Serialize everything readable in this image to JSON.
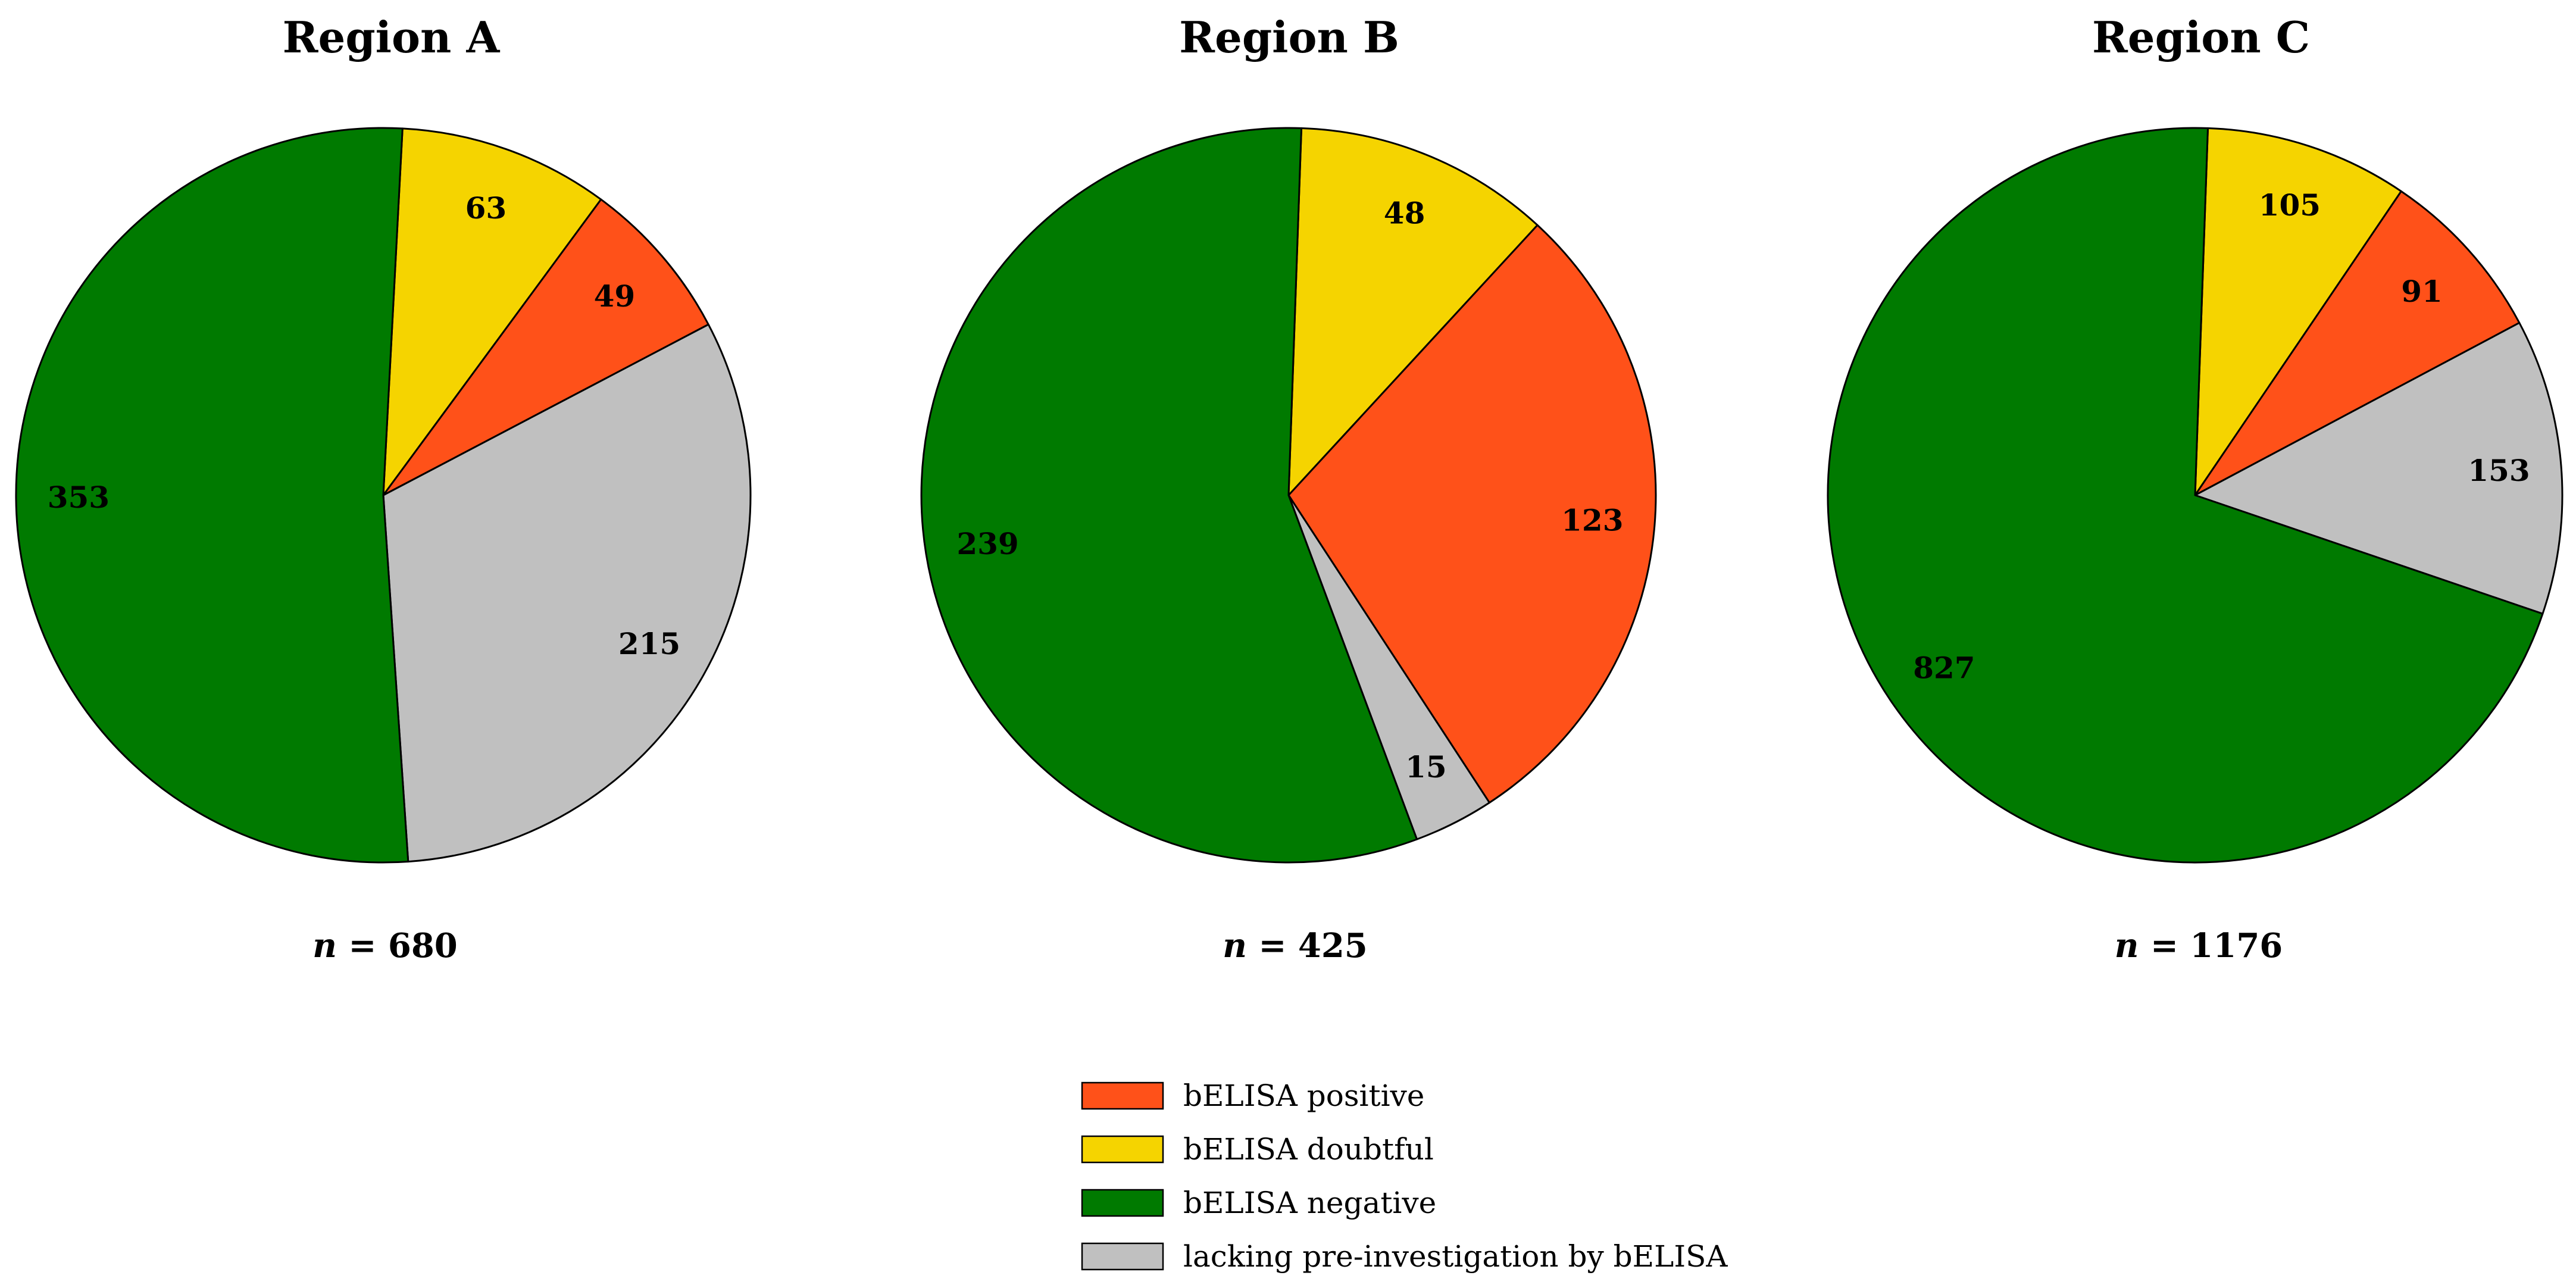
{
  "chart_data": [
    {
      "type": "pie",
      "title": "Region A",
      "n_prefix": "n",
      "n_text": " = 680",
      "categories": [
        "bELISA doubtful",
        "bELISA positive",
        "lacking pre-investigation by bELISA",
        "bELISA negative"
      ],
      "values": [
        63,
        49,
        215,
        353
      ]
    },
    {
      "type": "pie",
      "title": "Region B",
      "n_prefix": "n",
      "n_text": " = 425",
      "categories": [
        "bELISA doubtful",
        "bELISA positive",
        "lacking pre-investigation by bELISA",
        "bELISA negative"
      ],
      "values": [
        48,
        123,
        15,
        239
      ]
    },
    {
      "type": "pie",
      "title": "Region C",
      "n_prefix": "n",
      "n_text": " = 1176",
      "categories": [
        "bELISA doubtful",
        "bELISA positive",
        "lacking pre-investigation by bELISA",
        "bELISA negative"
      ],
      "values": [
        105,
        91,
        153,
        827
      ]
    }
  ],
  "legend": [
    {
      "label": "bELISA positive",
      "color": "#FF5119"
    },
    {
      "label": "bELISA doubtful",
      "color": "#F5D400"
    },
    {
      "label": "bELISA negative",
      "color": "#007A00"
    },
    {
      "label": "lacking pre-investigation by bELISA",
      "color": "#C0C0C0"
    }
  ],
  "colors": {
    "bELISA positive": "#FF5119",
    "bELISA doubtful": "#F5D400",
    "bELISA negative": "#007A00",
    "lacking pre-investigation by bELISA": "#C0C0C0"
  }
}
